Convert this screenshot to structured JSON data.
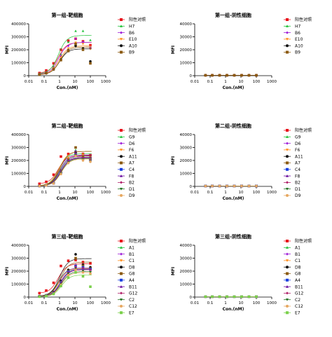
{
  "palette": {
    "阳性对照": "#e8141c",
    "H7": "#22c23a",
    "B6": "#a020d8",
    "E10": "#ff8c1a",
    "A10": "#111111",
    "B9": "#8b5a10",
    "G9": "#22c23a",
    "D6": "#a020d8",
    "F6": "#ff8c1a",
    "A11": "#111111",
    "A7": "#8b5a10",
    "C4": "#1a40e0",
    "F8": "#6a0d9e",
    "B2": "#b0206a",
    "D1": "#1e6e1e",
    "D9": "#e6a860",
    "A1": "#22c23a",
    "B1": "#a020d8",
    "C1": "#ff8c1a",
    "D8": "#111111",
    "G8": "#8b5a10",
    "A4": "#1a40e0",
    "B11": "#6a0d9e",
    "G12": "#b0206a",
    "C2": "#1e6e1e",
    "C12": "#e6a860",
    "E7": "#7ad04a"
  },
  "chart_data": [
    {
      "type": "scatter",
      "title": "第一组-靶细胞",
      "xlabel": "Con.(nM)",
      "ylabel": "MFI",
      "xscale": "log",
      "xlim": [
        0.01,
        1000
      ],
      "xticks": [
        "0.01",
        "0.1",
        "1",
        "10",
        "100",
        "1000"
      ],
      "ylim": [
        0,
        400000
      ],
      "yticks": [
        "0",
        "100000",
        "200000",
        "300000",
        "400000"
      ],
      "x": [
        0.05,
        0.137,
        0.41,
        1.23,
        3.7,
        11.1,
        33.3,
        100
      ],
      "legend_position": "right",
      "series": [
        {
          "name": "阳性对照",
          "values": [
            20000,
            40000,
            95000,
            200000,
            270000,
            285000,
            265000,
            235000
          ]
        },
        {
          "name": "H7",
          "values": [
            15000,
            30000,
            70000,
            165000,
            260000,
            345000,
            345000,
            275000
          ]
        },
        {
          "name": "B6",
          "values": [
            12000,
            25000,
            60000,
            150000,
            230000,
            285000,
            260000,
            215000
          ]
        },
        {
          "name": "E10",
          "values": [
            10000,
            22000,
            55000,
            140000,
            210000,
            255000,
            245000,
            205000
          ]
        },
        {
          "name": "A10",
          "values": [
            8000,
            18000,
            48000,
            125000,
            195000,
            230000,
            210000,
            110000
          ]
        },
        {
          "name": "B9",
          "values": [
            8000,
            20000,
            50000,
            120000,
            190000,
            245000,
            200000,
            95000
          ]
        }
      ]
    },
    {
      "type": "scatter",
      "title": "第一组-阴性细胞",
      "xlabel": "Con.(nM)",
      "ylabel": "MFI",
      "xscale": "log",
      "xlim": [
        0.01,
        1000
      ],
      "xticks": [
        "0.01",
        "0.1",
        "1",
        "10",
        "100",
        "1000"
      ],
      "ylim": [
        0,
        40000
      ],
      "yticks": [
        "0",
        "10000",
        "20000",
        "30000",
        "40000"
      ],
      "x": [
        0.05,
        0.137,
        0.41,
        1.23,
        3.7,
        11.1,
        33.3,
        100
      ],
      "legend_position": "right",
      "series": [
        {
          "name": "阳性对照",
          "values": [
            300,
            300,
            300,
            300,
            300,
            300,
            300,
            300
          ]
        },
        {
          "name": "H7",
          "values": [
            300,
            300,
            300,
            300,
            300,
            300,
            300,
            300
          ]
        },
        {
          "name": "B6",
          "values": [
            300,
            300,
            300,
            300,
            300,
            300,
            300,
            300
          ]
        },
        {
          "name": "E10",
          "values": [
            300,
            300,
            300,
            300,
            300,
            300,
            300,
            300
          ]
        },
        {
          "name": "A10",
          "values": [
            300,
            300,
            300,
            300,
            300,
            300,
            300,
            300
          ]
        },
        {
          "name": "B9",
          "values": [
            300,
            300,
            300,
            300,
            300,
            300,
            300,
            300
          ]
        }
      ]
    },
    {
      "type": "scatter",
      "title": "第二组-靶细胞",
      "xlabel": "Con.(nM)",
      "ylabel": "MFI",
      "xscale": "log",
      "xlim": [
        0.01,
        1000
      ],
      "xticks": [
        "0.01",
        "0.1",
        "1",
        "10",
        "100",
        "1000"
      ],
      "ylim": [
        0,
        400000
      ],
      "yticks": [
        "0",
        "100000",
        "200000",
        "300000",
        "400000"
      ],
      "x": [
        0.05,
        0.137,
        0.41,
        1.23,
        3.7,
        11.1,
        33.3,
        100
      ],
      "legend_position": "right",
      "series": [
        {
          "name": "阳性对照",
          "values": [
            20000,
            35000,
            90000,
            230000,
            250000,
            265000,
            250000,
            240000
          ]
        },
        {
          "name": "G9",
          "values": [
            5000,
            10000,
            30000,
            120000,
            220000,
            280000,
            240000,
            230000
          ]
        },
        {
          "name": "D6",
          "values": [
            4000,
            9000,
            28000,
            115000,
            215000,
            270000,
            235000,
            225000
          ]
        },
        {
          "name": "F6",
          "values": [
            5000,
            10000,
            32000,
            125000,
            220000,
            300000,
            245000,
            230000
          ]
        },
        {
          "name": "A11",
          "values": [
            3000,
            8000,
            25000,
            110000,
            200000,
            260000,
            220000,
            210000
          ]
        },
        {
          "name": "A7",
          "values": [
            4000,
            9000,
            28000,
            115000,
            205000,
            300000,
            230000,
            215000
          ]
        },
        {
          "name": "C4",
          "values": [
            3000,
            7000,
            24000,
            105000,
            195000,
            250000,
            215000,
            205000
          ]
        },
        {
          "name": "F8",
          "values": [
            3000,
            7000,
            22000,
            100000,
            190000,
            245000,
            210000,
            200000
          ]
        },
        {
          "name": "B2",
          "values": [
            3000,
            8000,
            25000,
            105000,
            195000,
            250000,
            215000,
            205000
          ]
        },
        {
          "name": "D1",
          "values": [
            3000,
            7000,
            22000,
            100000,
            185000,
            240000,
            205000,
            195000
          ]
        },
        {
          "name": "D9",
          "values": [
            3000,
            7000,
            22000,
            95000,
            180000,
            235000,
            200000,
            190000
          ]
        }
      ]
    },
    {
      "type": "scatter",
      "title": "第二组-阴性细胞",
      "xlabel": "Con.(nM)",
      "ylabel": "MFI",
      "xscale": "log",
      "xlim": [
        0.01,
        1000
      ],
      "xticks": [
        "0.01",
        "0.1",
        "1",
        "10",
        "100",
        "1000"
      ],
      "ylim": [
        0,
        40000
      ],
      "yticks": [
        "0",
        "10000",
        "20000",
        "30000",
        "40000"
      ],
      "x": [
        0.05,
        0.137,
        0.41,
        1.23,
        3.7,
        11.1,
        33.3,
        100
      ],
      "legend_position": "right",
      "series": [
        {
          "name": "阳性对照",
          "values": [
            300,
            300,
            300,
            300,
            300,
            300,
            300,
            300
          ]
        },
        {
          "name": "G9",
          "values": [
            300,
            300,
            300,
            300,
            300,
            300,
            300,
            300
          ]
        },
        {
          "name": "D6",
          "values": [
            300,
            300,
            300,
            300,
            300,
            300,
            300,
            300
          ]
        },
        {
          "name": "F6",
          "values": [
            300,
            300,
            300,
            300,
            300,
            300,
            300,
            300
          ]
        },
        {
          "name": "A11",
          "values": [
            300,
            300,
            300,
            300,
            300,
            300,
            300,
            300
          ]
        },
        {
          "name": "A7",
          "values": [
            300,
            300,
            300,
            300,
            300,
            300,
            300,
            300
          ]
        },
        {
          "name": "C4",
          "values": [
            300,
            300,
            300,
            300,
            300,
            300,
            300,
            300
          ]
        },
        {
          "name": "F8",
          "values": [
            300,
            300,
            300,
            300,
            300,
            300,
            300,
            300
          ]
        },
        {
          "name": "B2",
          "values": [
            300,
            300,
            300,
            300,
            300,
            300,
            300,
            300
          ]
        },
        {
          "name": "D1",
          "values": [
            300,
            300,
            300,
            300,
            300,
            300,
            300,
            300
          ]
        },
        {
          "name": "D9",
          "values": [
            300,
            300,
            300,
            300,
            300,
            300,
            300,
            300
          ]
        }
      ]
    },
    {
      "type": "scatter",
      "title": "第三组-靶细胞",
      "xlabel": "Con.(nM)",
      "ylabel": "MFI",
      "xscale": "log",
      "xlim": [
        0.01,
        1000
      ],
      "xticks": [
        "0.01",
        "0.1",
        "1",
        "10",
        "100",
        "1000"
      ],
      "ylim": [
        0,
        400000
      ],
      "yticks": [
        "0",
        "100000",
        "200000",
        "300000",
        "400000"
      ],
      "x": [
        0.05,
        0.137,
        0.41,
        1.23,
        3.7,
        11.1,
        33.3,
        100
      ],
      "legend_position": "right",
      "series": [
        {
          "name": "阳性对照",
          "values": [
            30000,
            50000,
            110000,
            240000,
            280000,
            285000,
            270000,
            260000
          ]
        },
        {
          "name": "A1",
          "values": [
            8000,
            15000,
            40000,
            130000,
            210000,
            250000,
            240000,
            230000
          ]
        },
        {
          "name": "B1",
          "values": [
            7000,
            14000,
            38000,
            120000,
            200000,
            250000,
            240000,
            225000
          ]
        },
        {
          "name": "C1",
          "values": [
            6000,
            13000,
            35000,
            115000,
            195000,
            245000,
            235000,
            220000
          ]
        },
        {
          "name": "D8",
          "values": [
            7000,
            14000,
            38000,
            125000,
            210000,
            330000,
            250000,
            230000
          ]
        },
        {
          "name": "G8",
          "values": [
            6000,
            12000,
            34000,
            115000,
            200000,
            300000,
            240000,
            220000
          ]
        },
        {
          "name": "A4",
          "values": [
            5000,
            11000,
            32000,
            110000,
            195000,
            240000,
            230000,
            215000
          ]
        },
        {
          "name": "B11",
          "values": [
            5000,
            11000,
            30000,
            105000,
            190000,
            235000,
            225000,
            210000
          ]
        },
        {
          "name": "G12",
          "values": [
            5000,
            11000,
            30000,
            105000,
            190000,
            235000,
            225000,
            210000
          ]
        },
        {
          "name": "C2",
          "values": [
            4000,
            10000,
            28000,
            100000,
            180000,
            220000,
            200000,
            190000
          ]
        },
        {
          "name": "C12",
          "values": [
            4000,
            9000,
            26000,
            95000,
            170000,
            210000,
            190000,
            180000
          ]
        },
        {
          "name": "E7",
          "values": [
            3000,
            8000,
            24000,
            85000,
            150000,
            190000,
            160000,
            80000
          ]
        }
      ]
    },
    {
      "type": "scatter",
      "title": "第三组-阴性细胞",
      "xlabel": "Con.(nM)",
      "ylabel": "MFI",
      "xscale": "log",
      "xlim": [
        0.01,
        1000
      ],
      "xticks": [
        "0.01",
        "0.1",
        "1",
        "10",
        "100",
        "1000"
      ],
      "ylim": [
        0,
        40000
      ],
      "yticks": [
        "0",
        "10000",
        "20000",
        "30000",
        "40000"
      ],
      "x": [
        0.05,
        0.137,
        0.41,
        1.23,
        3.7,
        11.1,
        33.3,
        100
      ],
      "legend_position": "right",
      "series": [
        {
          "name": "阳性对照",
          "values": [
            300,
            300,
            300,
            300,
            300,
            300,
            300,
            300
          ]
        },
        {
          "name": "A1",
          "values": [
            300,
            300,
            300,
            300,
            300,
            300,
            300,
            300
          ]
        },
        {
          "name": "B1",
          "values": [
            300,
            300,
            300,
            300,
            300,
            300,
            300,
            300
          ]
        },
        {
          "name": "C1",
          "values": [
            300,
            300,
            300,
            300,
            300,
            300,
            300,
            300
          ]
        },
        {
          "name": "D8",
          "values": [
            300,
            300,
            300,
            300,
            300,
            300,
            300,
            300
          ]
        },
        {
          "name": "G8",
          "values": [
            300,
            300,
            300,
            300,
            300,
            300,
            300,
            300
          ]
        },
        {
          "name": "A4",
          "values": [
            300,
            300,
            300,
            300,
            300,
            300,
            300,
            300
          ]
        },
        {
          "name": "B11",
          "values": [
            300,
            300,
            300,
            300,
            300,
            300,
            300,
            300
          ]
        },
        {
          "name": "G12",
          "values": [
            300,
            300,
            300,
            300,
            300,
            300,
            300,
            300
          ]
        },
        {
          "name": "C2",
          "values": [
            300,
            300,
            300,
            300,
            300,
            300,
            300,
            300
          ]
        },
        {
          "name": "C12",
          "values": [
            300,
            300,
            300,
            300,
            300,
            300,
            300,
            300
          ]
        },
        {
          "name": "E7",
          "values": [
            300,
            300,
            300,
            300,
            300,
            300,
            300,
            300
          ]
        }
      ]
    }
  ]
}
